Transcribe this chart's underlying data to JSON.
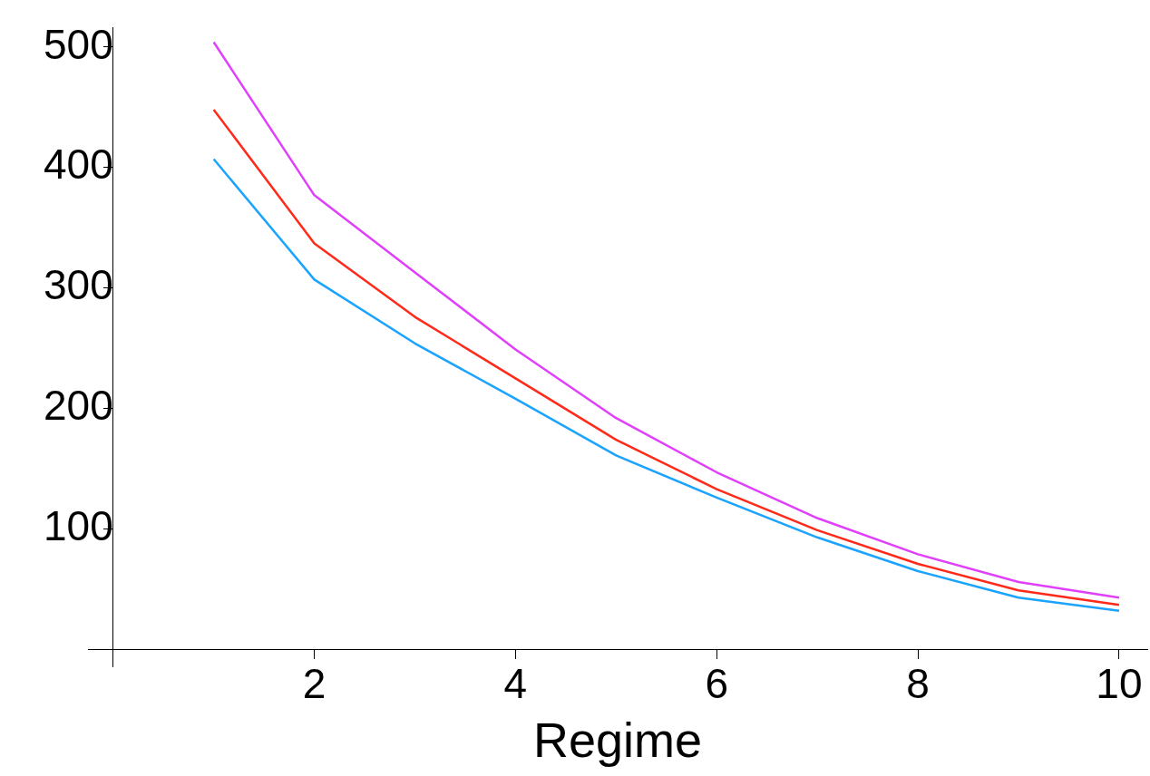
{
  "chart_data": {
    "type": "line",
    "xlabel": "Regime",
    "x": [
      1,
      2,
      3,
      4,
      5,
      6,
      7,
      8,
      9,
      10
    ],
    "series": [
      {
        "color": "#e040fb",
        "values": [
          504,
          377,
          313,
          249,
          192,
          147,
          109,
          79,
          56,
          43
        ]
      },
      {
        "color": "#ff2a1a",
        "values": [
          448,
          337,
          276,
          225,
          174,
          133,
          99,
          71,
          49,
          37
        ]
      },
      {
        "color": "#1aa3ff",
        "values": [
          407,
          307,
          254,
          208,
          161,
          126,
          93,
          65,
          43,
          32
        ]
      }
    ],
    "xlim": [
      -0.25,
      10.28
    ],
    "ylim": [
      -14,
      516
    ],
    "xticks": [
      2,
      4,
      6,
      8,
      10
    ],
    "yticks": [
      100,
      200,
      300,
      400,
      500
    ],
    "grid": false,
    "legend": false,
    "marker": "none",
    "line_style": "solid"
  }
}
